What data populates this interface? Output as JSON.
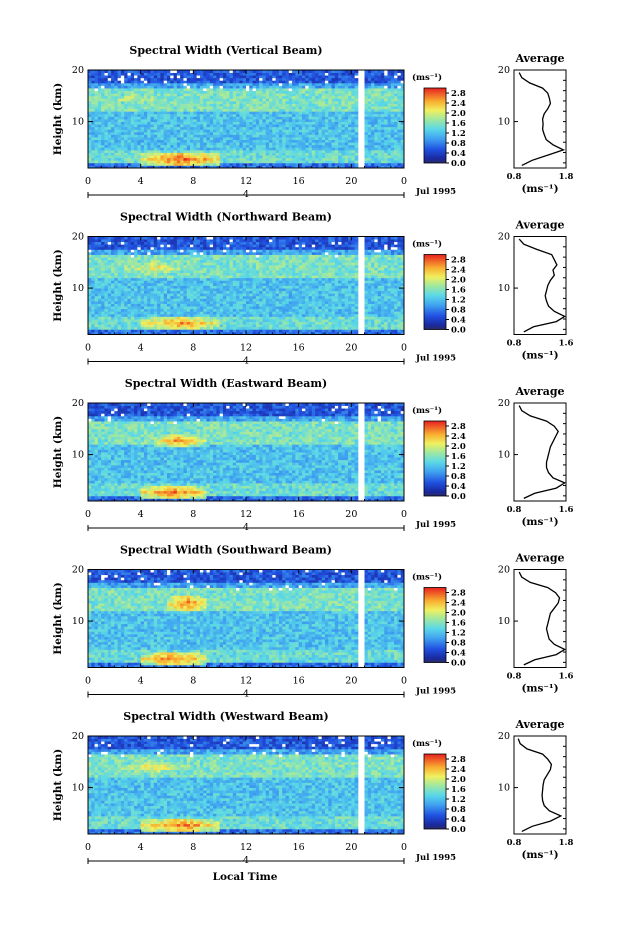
{
  "x_axis_label": "Local Time",
  "chart_data": [
    {
      "type": "heatmap",
      "title": "Spectral Width (Vertical Beam)",
      "ylabel": "Height (km)",
      "ylim": [
        1,
        20
      ],
      "xlim": [
        0,
        24
      ],
      "x_ticks": [
        "0",
        "4",
        "8",
        "12",
        "16",
        "20",
        "0"
      ],
      "y_ticks": [
        "10",
        "20"
      ],
      "date_marker": "4",
      "date_label": "Jul 1995",
      "colorbar": {
        "unit": "(ms⁻¹)",
        "ticks": [
          "2.8",
          "2.4",
          "2.0",
          "1.6",
          "1.2",
          "0.8",
          "0.4",
          "0.0"
        ],
        "range": [
          0,
          3.0
        ]
      },
      "data_gap": [
        20.5,
        21.0
      ],
      "features": [
        {
          "time": [
            4,
            10
          ],
          "height": [
            1.5,
            4
          ],
          "level": 2.8
        },
        {
          "time": [
            0,
            7
          ],
          "height": [
            13,
            16
          ],
          "level": 2.0
        },
        {
          "time": [
            0,
            24
          ],
          "height": [
            17,
            20
          ],
          "level": 0.6
        }
      ],
      "average": {
        "title": "Average",
        "xlim": [
          0.8,
          1.8
        ],
        "xticks": [
          "0.8",
          "1.8"
        ],
        "xlabel": "(ms⁻¹)",
        "heights": [
          1.5,
          2.5,
          3.5,
          4.5,
          5.5,
          6.5,
          7.5,
          8.5,
          9.5,
          10.5,
          11.5,
          12.5,
          13.5,
          14.5,
          15.5,
          16.5,
          17.5,
          18.5,
          19.5
        ],
        "values": [
          0.95,
          1.15,
          1.45,
          1.75,
          1.55,
          1.42,
          1.38,
          1.35,
          1.36,
          1.35,
          1.38,
          1.45,
          1.5,
          1.48,
          1.45,
          1.35,
          1.1,
          0.95,
          0.9
        ]
      }
    },
    {
      "type": "heatmap",
      "title": "Spectral Width (Northward Beam)",
      "ylabel": "Height (km)",
      "ylim": [
        1,
        20
      ],
      "xlim": [
        0,
        24
      ],
      "x_ticks": [
        "0",
        "4",
        "8",
        "12",
        "16",
        "20",
        "0"
      ],
      "y_ticks": [
        "10",
        "20"
      ],
      "date_marker": "4",
      "date_label": "Jul 1995",
      "colorbar": {
        "unit": "(ms⁻¹)",
        "ticks": [
          "2.8",
          "2.4",
          "2.0",
          "1.6",
          "1.2",
          "0.8",
          "0.4",
          "0.0"
        ],
        "range": [
          0,
          3.0
        ]
      },
      "data_gap": [
        20.5,
        21.0
      ],
      "features": [
        {
          "time": [
            4,
            10
          ],
          "height": [
            2,
            4.5
          ],
          "level": 2.6
        },
        {
          "time": [
            2,
            8
          ],
          "height": [
            12.5,
            15.5
          ],
          "level": 2.2
        },
        {
          "time": [
            0,
            24
          ],
          "height": [
            17.5,
            20
          ],
          "level": 0.7
        }
      ],
      "average": {
        "title": "Average",
        "xlim": [
          0.8,
          1.6
        ],
        "xticks": [
          "0.8",
          "1.6"
        ],
        "xlabel": "(ms⁻¹)",
        "heights": [
          1.5,
          2.5,
          3.5,
          4.5,
          5.5,
          6.5,
          7.5,
          8.5,
          9.5,
          10.5,
          11.5,
          12.5,
          13.5,
          14.5,
          15.5,
          16.5,
          17.5,
          18.5,
          19.5
        ],
        "values": [
          0.95,
          1.1,
          1.45,
          1.58,
          1.42,
          1.33,
          1.3,
          1.28,
          1.3,
          1.32,
          1.36,
          1.42,
          1.4,
          1.46,
          1.42,
          1.38,
          1.15,
          0.95,
          0.88
        ]
      }
    },
    {
      "type": "heatmap",
      "title": "Spectral Width (Eastward Beam)",
      "ylabel": "Height (km)",
      "ylim": [
        1,
        20
      ],
      "xlim": [
        0,
        24
      ],
      "x_ticks": [
        "0",
        "4",
        "8",
        "12",
        "16",
        "20",
        "0"
      ],
      "y_ticks": [
        "10",
        "20"
      ],
      "date_marker": "4",
      "date_label": "Jul 1995",
      "colorbar": {
        "unit": "(ms⁻¹)",
        "ticks": [
          "2.8",
          "2.4",
          "2.0",
          "1.6",
          "1.2",
          "0.8",
          "0.4",
          "0.0"
        ],
        "range": [
          0,
          3.0
        ]
      },
      "data_gap": [
        20.5,
        21.0
      ],
      "features": [
        {
          "time": [
            4,
            9
          ],
          "height": [
            1.5,
            4
          ],
          "level": 2.7
        },
        {
          "time": [
            5,
            9
          ],
          "height": [
            11.5,
            14
          ],
          "level": 2.6
        },
        {
          "time": [
            0,
            24
          ],
          "height": [
            17.5,
            20
          ],
          "level": 0.6
        }
      ],
      "average": {
        "title": "Average",
        "xlim": [
          0.8,
          1.6
        ],
        "xticks": [
          "0.8",
          "1.6"
        ],
        "xlabel": "(ms⁻¹)",
        "heights": [
          1.5,
          2.5,
          3.5,
          4.5,
          5.5,
          6.5,
          7.5,
          8.5,
          9.5,
          10.5,
          11.5,
          12.5,
          13.5,
          14.5,
          15.5,
          16.5,
          17.5,
          18.5,
          19.5
        ],
        "values": [
          0.95,
          1.12,
          1.45,
          1.58,
          1.4,
          1.33,
          1.3,
          1.3,
          1.32,
          1.34,
          1.36,
          1.4,
          1.44,
          1.48,
          1.42,
          1.3,
          1.05,
          0.92,
          0.88
        ]
      }
    },
    {
      "type": "heatmap",
      "title": "Spectral Width (Southward Beam)",
      "ylabel": "Height (km)",
      "ylim": [
        1,
        20
      ],
      "xlim": [
        0,
        24
      ],
      "x_ticks": [
        "0",
        "4",
        "8",
        "12",
        "16",
        "20",
        "0"
      ],
      "y_ticks": [
        "10",
        "20"
      ],
      "date_marker": "4",
      "date_label": "Jul 1995",
      "colorbar": {
        "unit": "(ms⁻¹)",
        "ticks": [
          "2.8",
          "2.4",
          "2.0",
          "1.6",
          "1.2",
          "0.8",
          "0.4",
          "0.0"
        ],
        "range": [
          0,
          3.0
        ]
      },
      "data_gap": [
        20.5,
        21.0
      ],
      "features": [
        {
          "time": [
            4,
            9
          ],
          "height": [
            1.5,
            4
          ],
          "level": 2.7
        },
        {
          "time": [
            6,
            9
          ],
          "height": [
            12,
            15
          ],
          "level": 2.7
        },
        {
          "time": [
            0,
            24
          ],
          "height": [
            17.5,
            20
          ],
          "level": 0.6
        }
      ],
      "average": {
        "title": "Average",
        "xlim": [
          0.8,
          1.6
        ],
        "xticks": [
          "0.8",
          "1.6"
        ],
        "xlabel": "(ms⁻¹)",
        "heights": [
          1.5,
          2.5,
          3.5,
          4.5,
          5.5,
          6.5,
          7.5,
          8.5,
          9.5,
          10.5,
          11.5,
          12.5,
          13.5,
          14.5,
          15.5,
          16.5,
          17.5,
          18.5,
          19.5
        ],
        "values": [
          0.95,
          1.12,
          1.45,
          1.58,
          1.42,
          1.34,
          1.32,
          1.3,
          1.32,
          1.34,
          1.36,
          1.42,
          1.48,
          1.5,
          1.44,
          1.32,
          1.05,
          0.92,
          0.88
        ]
      }
    },
    {
      "type": "heatmap",
      "title": "Spectral Width (Westward Beam)",
      "ylabel": "Height (km)",
      "ylim": [
        1,
        20
      ],
      "xlim": [
        0,
        24
      ],
      "x_ticks": [
        "0",
        "4",
        "8",
        "12",
        "16",
        "20",
        "0"
      ],
      "y_ticks": [
        "10",
        "20"
      ],
      "date_marker": "4",
      "date_label": "Jul 1995",
      "colorbar": {
        "unit": "(ms⁻¹)",
        "ticks": [
          "2.8",
          "2.4",
          "2.0",
          "1.6",
          "1.2",
          "0.8",
          "0.4",
          "0.0"
        ],
        "range": [
          0,
          3.0
        ]
      },
      "data_gap": [
        20.5,
        21.0
      ],
      "features": [
        {
          "time": [
            4,
            10
          ],
          "height": [
            1.5,
            4
          ],
          "level": 2.7
        },
        {
          "time": [
            2,
            8
          ],
          "height": [
            12.5,
            15.5
          ],
          "level": 2.2
        },
        {
          "time": [
            0,
            24
          ],
          "height": [
            17.5,
            20
          ],
          "level": 0.6
        }
      ],
      "average": {
        "title": "Average",
        "xlim": [
          0.8,
          1.8
        ],
        "xticks": [
          "0.8",
          "1.8"
        ],
        "xlabel": "(ms⁻¹)",
        "heights": [
          1.5,
          2.5,
          3.5,
          4.5,
          5.5,
          6.5,
          7.5,
          8.5,
          9.5,
          10.5,
          11.5,
          12.5,
          13.5,
          14.5,
          15.5,
          16.5,
          17.5,
          18.5,
          19.5
        ],
        "values": [
          0.95,
          1.15,
          1.5,
          1.7,
          1.48,
          1.38,
          1.35,
          1.34,
          1.35,
          1.36,
          1.38,
          1.44,
          1.5,
          1.52,
          1.45,
          1.35,
          1.05,
          0.92,
          0.88
        ]
      }
    }
  ]
}
